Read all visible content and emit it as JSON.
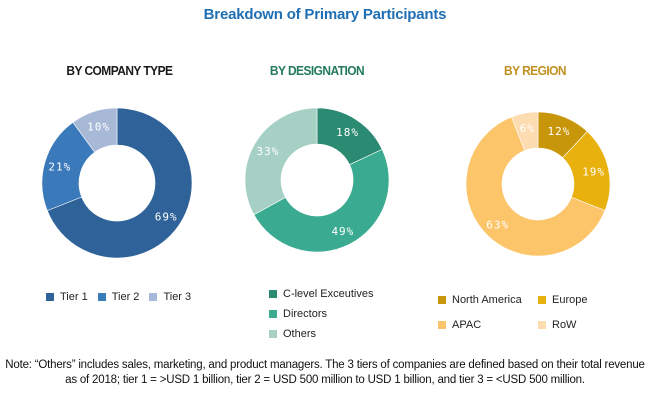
{
  "title": "Breakdown of Primary Participants",
  "chart_data": [
    {
      "type": "pie",
      "subtype": "donut",
      "title": "BY COMPANY TYPE",
      "title_color": "#1a1a1a",
      "categories": [
        "Tier 1",
        "Tier 2",
        "Tier 3"
      ],
      "values": [
        69,
        21,
        10
      ],
      "labels": [
        "69%",
        "21%",
        "10%"
      ],
      "colors": [
        "#2e6299",
        "#3a7abb",
        "#a7b9d6"
      ],
      "legend_placement": "bottom"
    },
    {
      "type": "pie",
      "subtype": "donut",
      "title": "BY DESIGNATION",
      "title_color": "#237a5e",
      "categories": [
        "C-level Exceutives",
        "Directors",
        "Others"
      ],
      "values": [
        18,
        49,
        33
      ],
      "labels": [
        "18%",
        "49%",
        "33%"
      ],
      "colors": [
        "#2b8a72",
        "#3aaa90",
        "#a5d0c3"
      ],
      "legend_placement": "bottom"
    },
    {
      "type": "pie",
      "subtype": "donut",
      "title": "BY REGION",
      "title_color": "#c09020",
      "categories": [
        "North America",
        "Europe",
        "APAC",
        "RoW"
      ],
      "values": [
        12,
        19,
        63,
        6
      ],
      "labels": [
        "12%",
        "19%",
        "63%",
        "6%"
      ],
      "colors": [
        "#c8960a",
        "#e9b10e",
        "#fdc56a",
        "#fcdcb0"
      ],
      "legend_placement": "bottom"
    }
  ],
  "note": "Note: “Others” includes sales, marketing, and product managers. The 3 tiers of companies are defined based on their total revenue as of 2018; tier 1 = >USD 1 billion, tier 2 = USD 500 million to USD 1 billion, and tier 3 = <USD 500 million."
}
